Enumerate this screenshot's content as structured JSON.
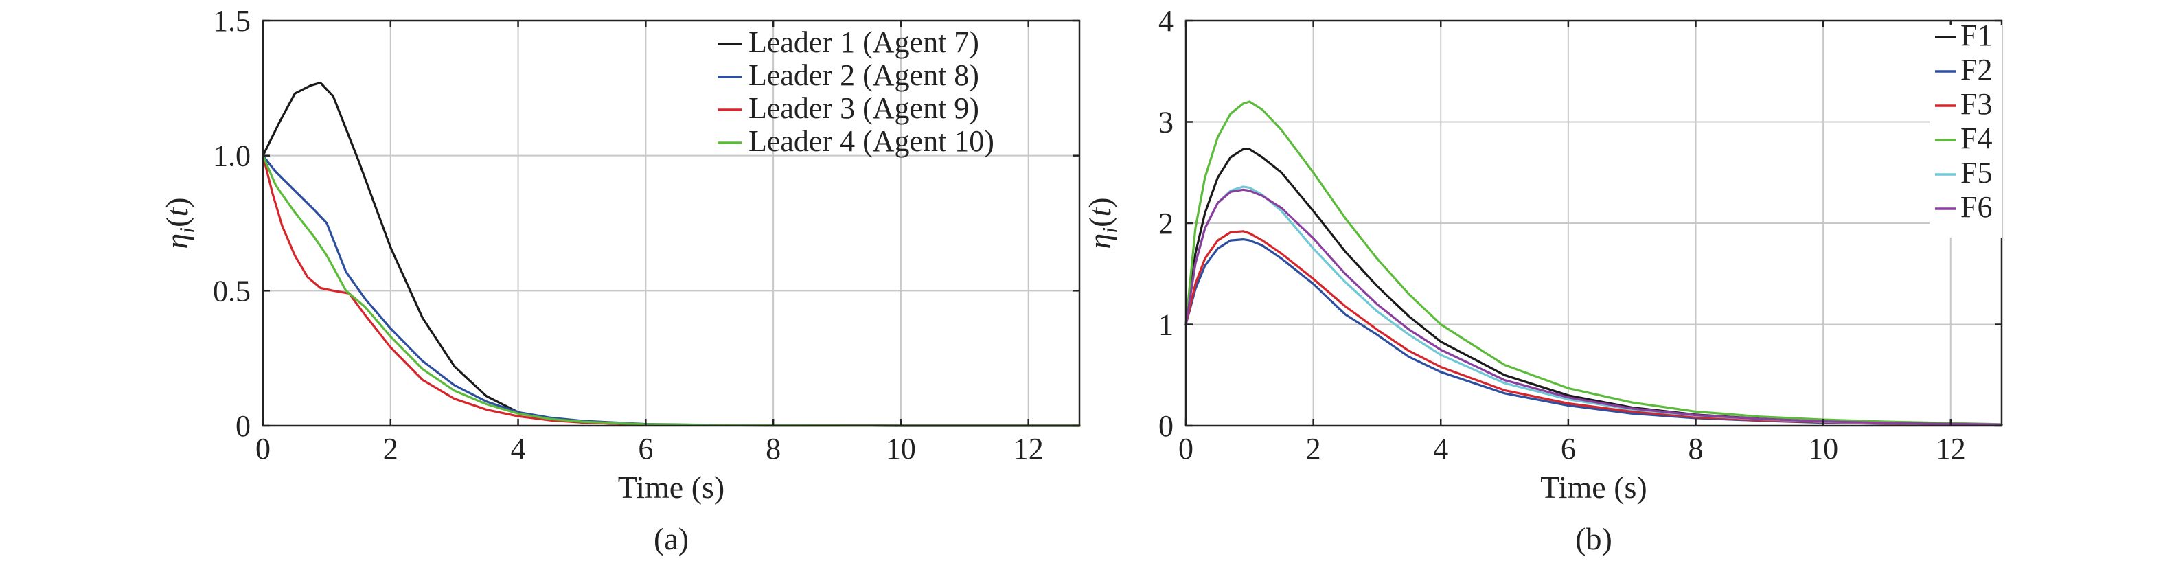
{
  "chart_data": [
    {
      "type": "line",
      "panel_label": "(a)",
      "xlabel": "Time (s)",
      "ylabel": "ηi(t)",
      "xlim": [
        0,
        12.8
      ],
      "ylim": [
        0,
        1.5
      ],
      "x_ticks": [
        0,
        2,
        4,
        6,
        8,
        10,
        12
      ],
      "y_ticks": [
        0,
        0.5,
        1.0,
        1.5
      ],
      "y_tick_labels": [
        "0",
        "0.5",
        "1.0",
        "1.5"
      ],
      "grid": true,
      "legend_position": "top-right",
      "series": [
        {
          "name": "Leader 1 (Agent 7)",
          "color": "#1a1a1a",
          "x": [
            0,
            0.25,
            0.5,
            0.75,
            0.9,
            1.1,
            1.5,
            2,
            2.5,
            3,
            3.5,
            4,
            4.5,
            5,
            6,
            7,
            8,
            10,
            12.8
          ],
          "y": [
            1.0,
            1.12,
            1.23,
            1.26,
            1.27,
            1.22,
            0.98,
            0.66,
            0.4,
            0.22,
            0.11,
            0.05,
            0.025,
            0.012,
            0.004,
            0.002,
            0.001,
            0.0,
            0.0
          ]
        },
        {
          "name": "Leader 2 (Agent 8)",
          "color": "#2d4fa0",
          "x": [
            0,
            0.2,
            0.5,
            0.8,
            1.0,
            1.3,
            1.6,
            2,
            2.5,
            3,
            3.5,
            4,
            4.5,
            5,
            6,
            7,
            8,
            10,
            12.8
          ],
          "y": [
            1.0,
            0.94,
            0.87,
            0.8,
            0.75,
            0.57,
            0.47,
            0.36,
            0.24,
            0.15,
            0.09,
            0.05,
            0.03,
            0.018,
            0.006,
            0.003,
            0.001,
            0.0,
            0.0
          ]
        },
        {
          "name": "Leader 3 (Agent 9)",
          "color": "#d7262b",
          "x": [
            0,
            0.15,
            0.3,
            0.5,
            0.7,
            0.9,
            1.1,
            1.35,
            1.6,
            2,
            2.5,
            3,
            3.5,
            4,
            4.5,
            5,
            6,
            7,
            8,
            10,
            12.8
          ],
          "y": [
            1.0,
            0.86,
            0.74,
            0.63,
            0.55,
            0.51,
            0.5,
            0.49,
            0.41,
            0.29,
            0.17,
            0.1,
            0.06,
            0.035,
            0.02,
            0.012,
            0.004,
            0.002,
            0.001,
            0.0,
            0.0
          ]
        },
        {
          "name": "Leader 4 (Agent 10)",
          "color": "#5dbb3c",
          "x": [
            0,
            0.2,
            0.5,
            0.8,
            1.0,
            1.3,
            1.6,
            2,
            2.5,
            3,
            3.5,
            4,
            4.5,
            5,
            6,
            7,
            8,
            10,
            12.8
          ],
          "y": [
            1.0,
            0.89,
            0.79,
            0.7,
            0.63,
            0.5,
            0.44,
            0.33,
            0.21,
            0.13,
            0.08,
            0.045,
            0.025,
            0.015,
            0.005,
            0.002,
            0.001,
            0.0,
            0.0
          ]
        }
      ]
    },
    {
      "type": "line",
      "panel_label": "(b)",
      "xlabel": "Time (s)",
      "ylabel": "ηi(t)",
      "xlim": [
        0,
        12.8
      ],
      "ylim": [
        0,
        4
      ],
      "x_ticks": [
        0,
        2,
        4,
        6,
        8,
        10,
        12
      ],
      "y_ticks": [
        0,
        1,
        2,
        3,
        4
      ],
      "y_tick_labels": [
        "0",
        "1",
        "2",
        "3",
        "4"
      ],
      "grid": true,
      "legend_position": "top-right",
      "series": [
        {
          "name": "F1",
          "color": "#1a1a1a",
          "x": [
            0,
            0.15,
            0.3,
            0.5,
            0.7,
            0.9,
            1.0,
            1.2,
            1.5,
            2,
            2.5,
            3,
            3.5,
            4,
            5,
            6,
            7,
            8,
            9,
            10,
            11,
            12.8
          ],
          "y": [
            1.0,
            1.7,
            2.1,
            2.45,
            2.65,
            2.73,
            2.73,
            2.65,
            2.5,
            2.12,
            1.72,
            1.38,
            1.08,
            0.83,
            0.5,
            0.3,
            0.18,
            0.11,
            0.07,
            0.045,
            0.03,
            0.01
          ]
        },
        {
          "name": "F2",
          "color": "#2d4fa0",
          "x": [
            0,
            0.15,
            0.3,
            0.5,
            0.7,
            0.9,
            1.0,
            1.2,
            1.5,
            2,
            2.5,
            3,
            3.5,
            4,
            5,
            6,
            7,
            8,
            9,
            10,
            11,
            12.8
          ],
          "y": [
            1.0,
            1.35,
            1.58,
            1.75,
            1.83,
            1.84,
            1.83,
            1.78,
            1.65,
            1.4,
            1.1,
            0.9,
            0.68,
            0.53,
            0.32,
            0.2,
            0.12,
            0.075,
            0.05,
            0.03,
            0.02,
            0.01
          ]
        },
        {
          "name": "F3",
          "color": "#d7262b",
          "x": [
            0,
            0.15,
            0.3,
            0.5,
            0.7,
            0.9,
            1.0,
            1.2,
            1.5,
            2,
            2.5,
            3,
            3.5,
            4,
            5,
            6,
            7,
            8,
            9,
            10,
            11,
            12.8
          ],
          "y": [
            1.0,
            1.4,
            1.65,
            1.83,
            1.91,
            1.92,
            1.9,
            1.83,
            1.7,
            1.45,
            1.18,
            0.95,
            0.74,
            0.58,
            0.35,
            0.22,
            0.14,
            0.085,
            0.055,
            0.035,
            0.022,
            0.01
          ]
        },
        {
          "name": "F4",
          "color": "#5dbb3c",
          "x": [
            0,
            0.15,
            0.3,
            0.5,
            0.7,
            0.9,
            1.0,
            1.2,
            1.5,
            2,
            2.5,
            3,
            3.5,
            4,
            5,
            6,
            7,
            8,
            9,
            10,
            11,
            12.8
          ],
          "y": [
            1.0,
            1.95,
            2.45,
            2.85,
            3.08,
            3.18,
            3.2,
            3.12,
            2.92,
            2.5,
            2.05,
            1.65,
            1.3,
            1.0,
            0.6,
            0.37,
            0.23,
            0.14,
            0.09,
            0.06,
            0.04,
            0.015
          ]
        },
        {
          "name": "F5",
          "color": "#6fc8d4",
          "x": [
            0,
            0.15,
            0.3,
            0.5,
            0.7,
            0.9,
            1.0,
            1.2,
            1.5,
            2,
            2.5,
            3,
            3.5,
            4,
            5,
            6,
            7,
            8,
            9,
            10,
            11,
            12.8
          ],
          "y": [
            1.0,
            1.6,
            1.95,
            2.2,
            2.32,
            2.36,
            2.35,
            2.28,
            2.12,
            1.75,
            1.42,
            1.13,
            0.9,
            0.7,
            0.42,
            0.26,
            0.16,
            0.1,
            0.065,
            0.04,
            0.026,
            0.01
          ]
        },
        {
          "name": "F6",
          "color": "#8a3f9e",
          "x": [
            0,
            0.15,
            0.3,
            0.5,
            0.7,
            0.9,
            1.0,
            1.2,
            1.5,
            2,
            2.5,
            3,
            3.5,
            4,
            5,
            6,
            7,
            8,
            9,
            10,
            11,
            12.8
          ],
          "y": [
            1.0,
            1.6,
            1.95,
            2.2,
            2.31,
            2.33,
            2.32,
            2.27,
            2.15,
            1.85,
            1.5,
            1.2,
            0.95,
            0.75,
            0.45,
            0.28,
            0.17,
            0.105,
            0.068,
            0.043,
            0.028,
            0.01
          ]
        }
      ]
    }
  ]
}
